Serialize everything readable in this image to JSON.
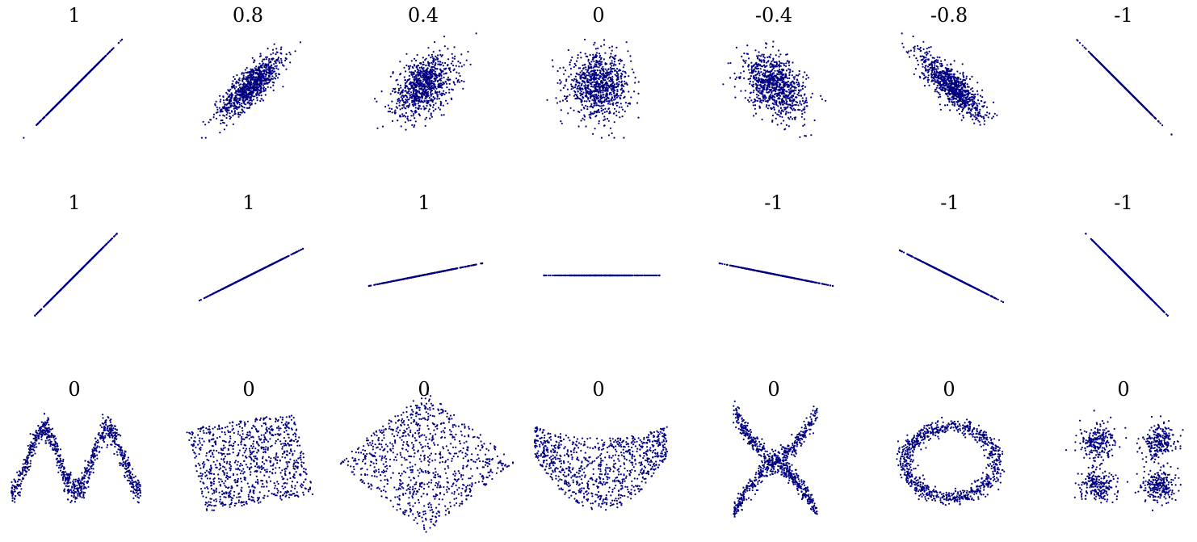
{
  "point_color": "#000080",
  "chart_data": [
    {
      "type": "scatter",
      "pattern": "correlated",
      "r": 1,
      "title": "1"
    },
    {
      "type": "scatter",
      "pattern": "correlated",
      "r": 0.8,
      "title": "0.8"
    },
    {
      "type": "scatter",
      "pattern": "correlated",
      "r": 0.4,
      "title": "0.4"
    },
    {
      "type": "scatter",
      "pattern": "correlated",
      "r": 0,
      "title": "0"
    },
    {
      "type": "scatter",
      "pattern": "correlated",
      "r": -0.4,
      "title": "-0.4"
    },
    {
      "type": "scatter",
      "pattern": "correlated",
      "r": -0.8,
      "title": "-0.8"
    },
    {
      "type": "scatter",
      "pattern": "correlated",
      "r": -1,
      "title": "-1"
    },
    {
      "type": "scatter",
      "pattern": "line",
      "slope": 1,
      "title": "1"
    },
    {
      "type": "scatter",
      "pattern": "line",
      "slope": 0.5,
      "title": "1"
    },
    {
      "type": "scatter",
      "pattern": "line",
      "slope": 0.2,
      "title": "1"
    },
    {
      "type": "scatter",
      "pattern": "line",
      "slope": 0,
      "title": ""
    },
    {
      "type": "scatter",
      "pattern": "line",
      "slope": -0.2,
      "title": "-1"
    },
    {
      "type": "scatter",
      "pattern": "line",
      "slope": -0.5,
      "title": "-1"
    },
    {
      "type": "scatter",
      "pattern": "line",
      "slope": -1,
      "title": "-1"
    },
    {
      "type": "scatter",
      "pattern": "wave",
      "title": "0"
    },
    {
      "type": "scatter",
      "pattern": "rotated-square",
      "title": "0"
    },
    {
      "type": "scatter",
      "pattern": "diamond",
      "title": "0"
    },
    {
      "type": "scatter",
      "pattern": "parabola",
      "title": "0"
    },
    {
      "type": "scatter",
      "pattern": "x-shape",
      "title": "0"
    },
    {
      "type": "scatter",
      "pattern": "ring",
      "title": "0"
    },
    {
      "type": "scatter",
      "pattern": "four-clusters",
      "title": "0"
    }
  ]
}
